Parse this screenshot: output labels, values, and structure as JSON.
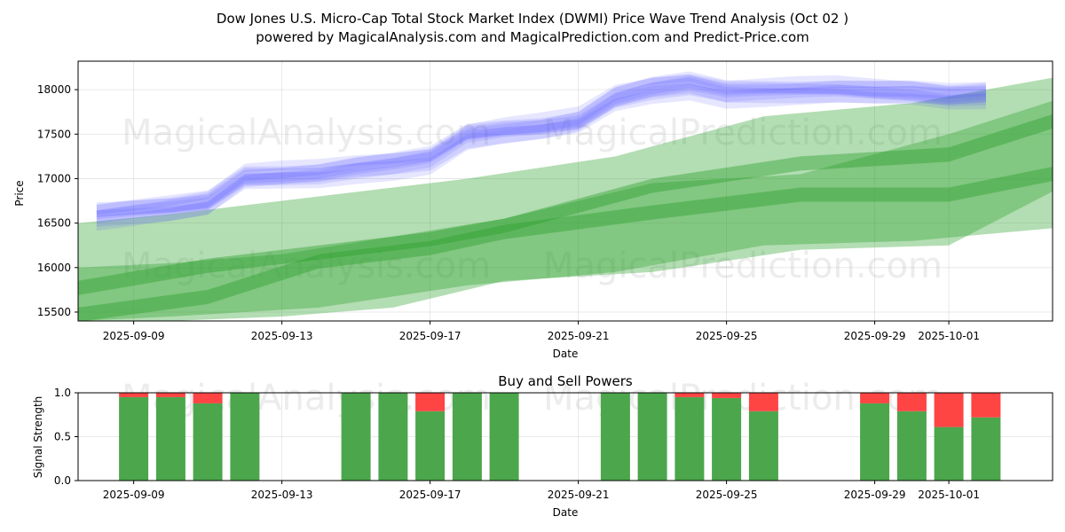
{
  "title_line1": "Dow Jones U.S. Micro-Cap Total Stock Market Index (DWMI) Price Wave Trend Analysis (Oct 02 )",
  "title_line2": "powered by MagicalAnalysis.com and MagicalPrediction.com and Predict-Price.com",
  "watermarks": [
    "MagicalAnalysis.com",
    "MagicalPrediction.com"
  ],
  "colors": {
    "green": "#2ca02c",
    "blue": "#4b4bff",
    "sell": "#ff4444",
    "buy": "#4ca64c"
  },
  "chart_data": [
    {
      "type": "area",
      "name": "price-wave",
      "title": "",
      "xlabel": "Date",
      "ylabel": "Price",
      "x_ticks": [
        "2025-09-09",
        "2025-09-13",
        "2025-09-17",
        "2025-09-21",
        "2025-09-25",
        "2025-09-29",
        "2025-10-01"
      ],
      "y_ticks": [
        "15500",
        "16000",
        "16500",
        "17000",
        "17500",
        "18000"
      ],
      "xlim_days": [
        -0.5,
        25.8
      ],
      "ylim": [
        15400,
        18320
      ],
      "green_bands": [
        {
          "days": [
            -0.5,
            2,
            6,
            10,
            14,
            18,
            22,
            26
          ],
          "upper": [
            16500,
            16600,
            16800,
            17000,
            17250,
            17700,
            17850,
            18150
          ],
          "lower": [
            15400,
            15450,
            15550,
            15800,
            15950,
            16250,
            16300,
            16450
          ]
        },
        {
          "days": [
            -0.5,
            2,
            5,
            8,
            11,
            15,
            19,
            23,
            26
          ],
          "upper": [
            16000,
            16050,
            16150,
            16350,
            16550,
            16950,
            17050,
            17500,
            17900
          ],
          "lower": [
            15380,
            15400,
            15450,
            15550,
            15850,
            15950,
            16200,
            16250,
            16900
          ]
        },
        {
          "days": [
            -0.5,
            3,
            6,
            9,
            11,
            15,
            19,
            23,
            26
          ],
          "upper": [
            15850,
            16100,
            16250,
            16400,
            16550,
            17000,
            17250,
            17350,
            17750
          ]
        },
        {
          "days": [
            -0.5,
            3,
            6,
            9,
            11,
            15,
            19,
            23,
            26
          ],
          "upper": [
            15550,
            15750,
            16150,
            16300,
            16480,
            16700,
            16900,
            16900,
            17150
          ]
        }
      ],
      "blue_series": {
        "days": [
          0,
          1,
          2,
          3,
          4,
          5,
          6,
          7,
          8,
          9,
          10,
          11,
          12,
          13,
          14,
          15,
          16,
          17,
          18,
          19,
          20,
          21,
          22,
          23,
          24
        ],
        "center": [
          16580,
          16620,
          16660,
          16720,
          17010,
          17030,
          17050,
          17110,
          17150,
          17210,
          17470,
          17530,
          17570,
          17640,
          17900,
          18000,
          18050,
          17960,
          17970,
          17980,
          17990,
          17970,
          17960,
          17920,
          17940
        ]
      }
    },
    {
      "type": "bar",
      "name": "buy-sell-powers",
      "title": "Buy and Sell Powers",
      "xlabel": "Date",
      "ylabel": "Signal Strength",
      "ylim": [
        0,
        1
      ],
      "y_ticks": [
        "0.0",
        "0.5",
        "1.0"
      ],
      "x_ticks": [
        "2025-09-09",
        "2025-09-13",
        "2025-09-17",
        "2025-09-21",
        "2025-09-25",
        "2025-09-29",
        "2025-10-01"
      ],
      "series": [
        {
          "name": "Buy",
          "days": [
            1,
            2,
            3,
            4,
            7,
            8,
            9,
            10,
            11,
            14,
            15,
            16,
            17,
            18,
            21,
            22,
            23,
            24
          ],
          "values": [
            0.95,
            0.95,
            0.88,
            1.0,
            1.0,
            1.0,
            0.79,
            1.0,
            1.0,
            1.0,
            1.0,
            0.95,
            0.94,
            0.79,
            0.88,
            0.79,
            0.61,
            0.72
          ]
        },
        {
          "name": "Sell",
          "days": [
            1,
            2,
            3,
            4,
            7,
            8,
            9,
            10,
            11,
            14,
            15,
            16,
            17,
            18,
            21,
            22,
            23,
            24
          ],
          "values": [
            0.05,
            0.05,
            0.12,
            0.0,
            0.0,
            0.0,
            0.21,
            0.0,
            0.0,
            0.0,
            0.0,
            0.05,
            0.06,
            0.21,
            0.12,
            0.21,
            0.39,
            0.28
          ]
        }
      ]
    }
  ]
}
